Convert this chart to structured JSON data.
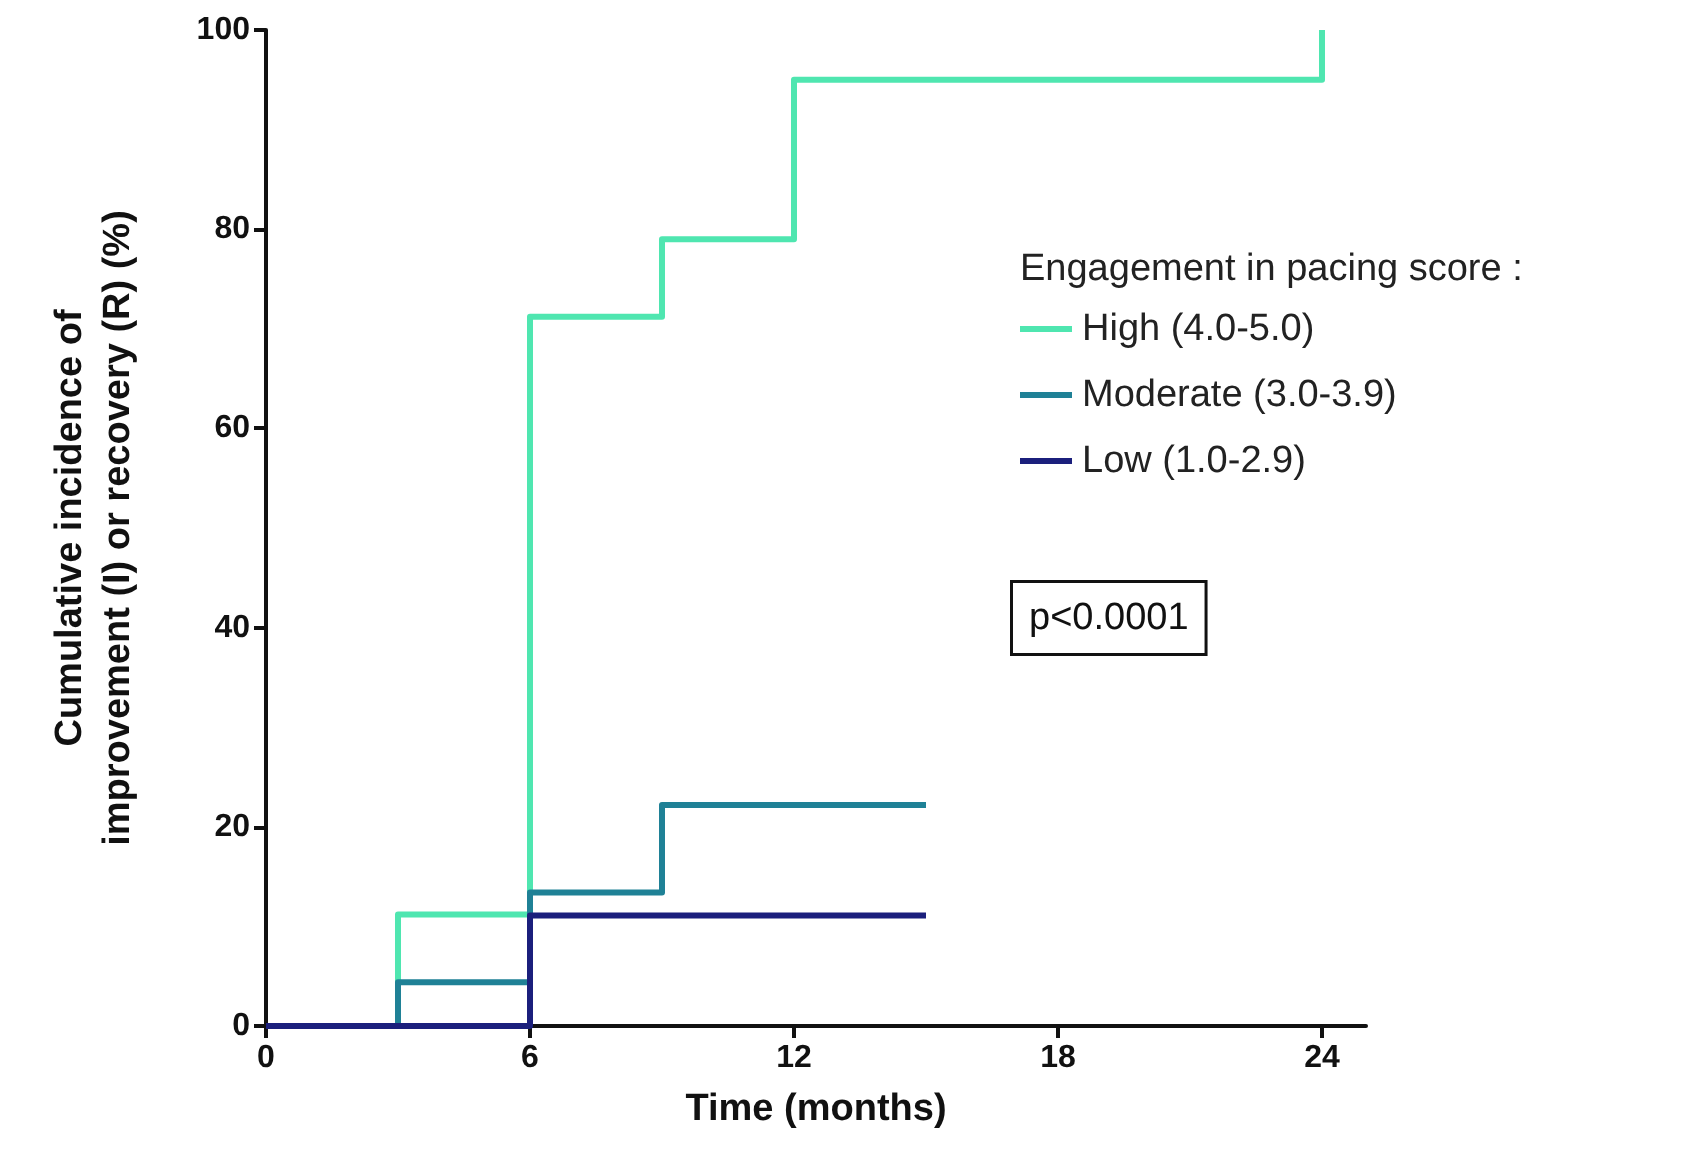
{
  "chart_data": {
    "type": "step",
    "xlabel": "Time (months)",
    "ylabel": "Cumulative incidence of\nimprovement (I) or recovery (R) (%)",
    "legend_title": "Engagement in pacing score :",
    "series": [
      {
        "name": "High (4.0-5.0)",
        "color": "#4fe6b0",
        "x": [
          0,
          3,
          6,
          9,
          12,
          24,
          24
        ],
        "values": [
          0,
          11.2,
          71.2,
          79,
          95,
          95,
          100
        ]
      },
      {
        "name": "Moderate (3.0-3.9)",
        "color": "#1f8196",
        "x": [
          0,
          3,
          6,
          9,
          15
        ],
        "values": [
          0,
          4.4,
          13.4,
          22.2,
          22.2
        ]
      },
      {
        "name": "Low (1.0-2.9)",
        "color": "#1b1f7c",
        "x": [
          0,
          6,
          15
        ],
        "values": [
          0,
          11.1,
          11.1
        ]
      }
    ],
    "xlim": [
      0,
      25
    ],
    "xticks": [
      0,
      6,
      12,
      18,
      24
    ],
    "ylim": [
      0,
      100
    ],
    "yticks": [
      0,
      20,
      40,
      60,
      80,
      100
    ],
    "grid": false,
    "legend": "right",
    "marker": "none",
    "line_style": "solid",
    "annotations": [
      "p<0.0001"
    ]
  }
}
